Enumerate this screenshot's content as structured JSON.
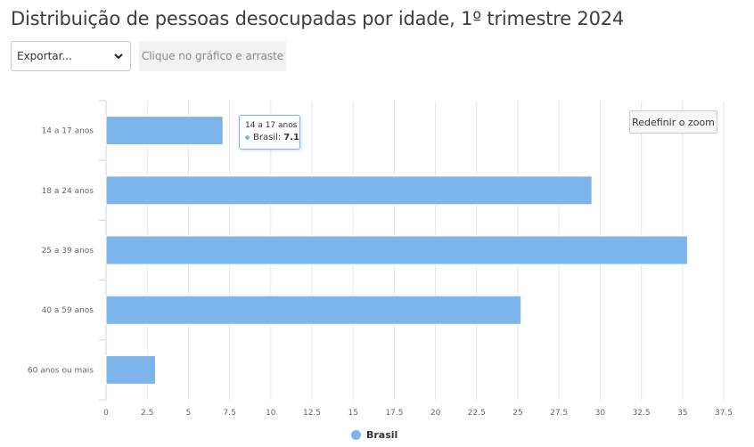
{
  "title": "Distribuição de pessoas desocupadas por idade, 1º trimestre 2024",
  "controls": {
    "export_label": "Exportar...",
    "drag_hint": "Clique no gráfico e arraste",
    "reset_zoom_label": "Redefinir o zoom"
  },
  "tooltip": {
    "category": "14 a 17 anos",
    "series": "Brasil:",
    "value": "7.1"
  },
  "chart_data": {
    "type": "bar",
    "orientation": "horizontal",
    "categories": [
      "14 a 17 anos",
      "18 a 24 anos",
      "25 a 39 anos",
      "40 a 59 anos",
      "60 anos ou mais"
    ],
    "series": [
      {
        "name": "Brasil",
        "color": "#7cb5ec",
        "values": [
          7.1,
          29.5,
          35.3,
          25.2,
          3.0
        ]
      }
    ],
    "x_ticks": [
      "0",
      "2.5",
      "5",
      "7.5",
      "10",
      "12.5",
      "15",
      "17.5",
      "20",
      "22.5",
      "25",
      "27.5",
      "30",
      "32.5",
      "35",
      "37.5"
    ],
    "xlim": [
      0,
      37.5
    ],
    "grid": true,
    "legend": "bottom-center"
  }
}
